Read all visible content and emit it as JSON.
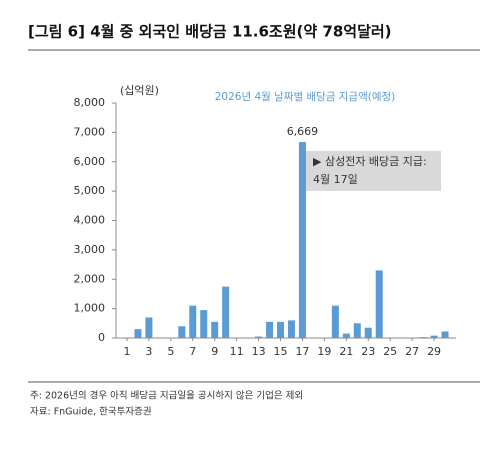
{
  "chart_data": {
    "type": "bar",
    "title": "[그림 6] 4월 중 외국인 배당금 11.6조원(약 78억달러)",
    "subtitle": "2026년 4월 날짜별 배당금 지급액(예정)",
    "y_label": "(십억원)",
    "x": [
      1,
      2,
      3,
      4,
      5,
      6,
      7,
      8,
      9,
      10,
      11,
      12,
      13,
      14,
      15,
      16,
      17,
      18,
      19,
      20,
      21,
      22,
      23,
      24,
      25,
      26,
      27,
      28,
      29,
      30
    ],
    "values": [
      0,
      300,
      700,
      0,
      0,
      400,
      1100,
      950,
      550,
      1750,
      0,
      0,
      50,
      550,
      550,
      600,
      6669,
      0,
      0,
      1100,
      150,
      500,
      350,
      2300,
      0,
      0,
      0,
      30,
      80,
      220
    ],
    "value_labels": [
      null,
      null,
      null,
      null,
      null,
      null,
      null,
      null,
      null,
      null,
      null,
      null,
      null,
      null,
      null,
      null,
      "6,669",
      null,
      null,
      null,
      null,
      null,
      null,
      null,
      null,
      null,
      null,
      null,
      null,
      null
    ],
    "color": "#5b9bd5",
    "xlim": [
      0,
      31
    ],
    "xticks": [
      1,
      3,
      5,
      7,
      9,
      11,
      13,
      15,
      17,
      19,
      21,
      23,
      25,
      27,
      29
    ],
    "ylim": [
      0,
      8000
    ],
    "yticks": [
      0,
      {
        "value": 1000,
        "label": "1,000"
      },
      {
        "value": 2000,
        "label": "2,000"
      },
      {
        "value": 3000,
        "label": "3,000"
      },
      {
        "value": 4000,
        "label": "4,000"
      },
      {
        "value": 5000,
        "label": "5,000"
      },
      {
        "value": 6000,
        "label": "6,000"
      },
      {
        "value": 7000,
        "label": "7,000"
      },
      {
        "value": 8000,
        "label": "8,000"
      }
    ],
    "grid": false,
    "annotation": [
      "▶ 삼성전자 배당금 지급:",
      "4월 17일"
    ],
    "notes": [
      "주: 2026년의 경우 아직 배당금 지급일을 공시하지 않은 기업은 제외",
      "자료: FnGuide, 한국투자증권"
    ]
  }
}
